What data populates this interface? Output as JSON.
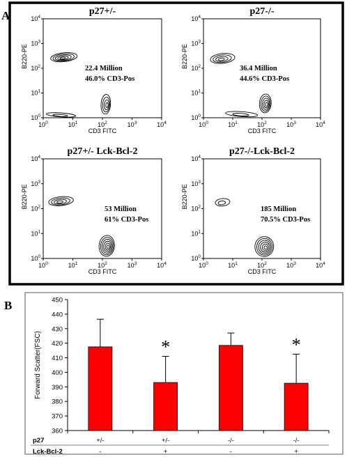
{
  "panel_a_label": "A",
  "panel_b_label": "B",
  "chart_data": [
    {
      "type": "scatter",
      "subtype": "flow-cytometry-contour",
      "title": "p27+/-",
      "xlabel": "CD3 FITC",
      "ylabel": "B220-PE",
      "scale": "log",
      "xlim": [
        1,
        10000
      ],
      "ylim": [
        1,
        10000
      ],
      "annotation_lines": [
        "22.4 Million",
        "46.0% CD3-Pos"
      ],
      "populations": [
        {
          "x": 5,
          "y": 280,
          "rx": 0.45,
          "ry": 0.18,
          "levels": 5
        },
        {
          "x": 130,
          "y": 3.5,
          "rx": 0.16,
          "ry": 0.4,
          "levels": 4
        },
        {
          "x": 4,
          "y": 1.3,
          "rx": 0.5,
          "ry": 0.08,
          "levels": 2
        }
      ]
    },
    {
      "type": "scatter",
      "subtype": "flow-cytometry-contour",
      "title": "p27-/-",
      "xlabel": "CD3 FITC",
      "ylabel": "B220-PE",
      "scale": "log",
      "xlim": [
        1,
        10000
      ],
      "ylim": [
        1,
        10000
      ],
      "annotation_lines": [
        "36.4 Million",
        "44.6% CD3-Pos"
      ],
      "populations": [
        {
          "x": 4.5,
          "y": 250,
          "rx": 0.42,
          "ry": 0.2,
          "levels": 4
        },
        {
          "x": 130,
          "y": 3.8,
          "rx": 0.2,
          "ry": 0.38,
          "levels": 5
        },
        {
          "x": 20,
          "y": 1.4,
          "rx": 0.55,
          "ry": 0.1,
          "levels": 2
        }
      ]
    },
    {
      "type": "scatter",
      "subtype": "flow-cytometry-contour",
      "title": "p27+/- Lck-Bcl-2",
      "xlabel": "CD3 FITC",
      "ylabel": "B220-PE",
      "scale": "log",
      "xlim": [
        1,
        10000
      ],
      "ylim": [
        1,
        10000
      ],
      "annotation_lines": [
        "53 Million",
        "61% CD3-Pos"
      ],
      "populations": [
        {
          "x": 4,
          "y": 200,
          "rx": 0.42,
          "ry": 0.18,
          "levels": 4
        },
        {
          "x": 140,
          "y": 3.2,
          "rx": 0.26,
          "ry": 0.42,
          "levels": 6
        }
      ]
    },
    {
      "type": "scatter",
      "subtype": "flow-cytometry-contour",
      "title": "p27-/-Lck-Bcl-2",
      "xlabel": "CD3 FITC",
      "ylabel": "B220-PE",
      "scale": "log",
      "xlim": [
        1,
        10000
      ],
      "ylim": [
        1,
        10000
      ],
      "annotation_lines": [
        "185 Million",
        "70.5% CD3-Pos"
      ],
      "populations": [
        {
          "x": 4.5,
          "y": 180,
          "rx": 0.25,
          "ry": 0.15,
          "levels": 2
        },
        {
          "x": 120,
          "y": 3.0,
          "rx": 0.32,
          "ry": 0.4,
          "levels": 6
        }
      ]
    },
    {
      "type": "bar",
      "title": "",
      "xlabel": "",
      "ylabel": "Forward Scatter(FSC)",
      "ylim": [
        360,
        450
      ],
      "yticks": [
        360,
        370,
        380,
        390,
        400,
        410,
        420,
        430,
        440,
        450
      ],
      "bar_color": "#ff0000",
      "values": [
        417.5,
        393,
        418.5,
        392.5
      ],
      "errors": [
        19,
        18,
        8.5,
        20
      ],
      "significance": [
        "",
        "*",
        "",
        "*"
      ],
      "group_rows": [
        {
          "label": "p27",
          "values": [
            "+/-",
            "+/-",
            "-/-",
            "-/-"
          ]
        },
        {
          "label": "Lck-Bcl-2",
          "values": [
            "-",
            "+",
            "-",
            "+"
          ]
        }
      ]
    }
  ]
}
